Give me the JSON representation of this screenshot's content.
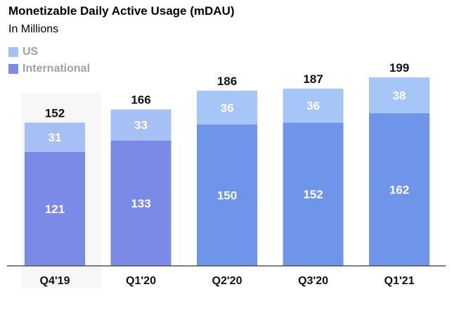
{
  "title": "Monetizable Daily Active Usage (mDAU)",
  "subtitle": "In Millions",
  "legend": [
    {
      "label": "US",
      "color": "#a6bff5"
    },
    {
      "label": "International",
      "color": "#7b8ae6"
    }
  ],
  "chart_data": {
    "type": "bar",
    "stacked": true,
    "categories": [
      "Q4'19",
      "Q1'20",
      "Q2'20",
      "Q3'20",
      "Q1'21"
    ],
    "series": [
      {
        "name": "International",
        "values": [
          121,
          133,
          150,
          152,
          162
        ],
        "colors": [
          "#7b8ae6",
          "#7b8ae6",
          "#6f95ea",
          "#6f95ea",
          "#6f95ea"
        ]
      },
      {
        "name": "US",
        "values": [
          31,
          33,
          36,
          36,
          38
        ],
        "colors": [
          "#a6bff5",
          "#a6bff5",
          "#a6c6f7",
          "#a6c6f7",
          "#a6c6f7"
        ]
      }
    ],
    "totals": [
      152,
      166,
      186,
      187,
      199
    ],
    "title": "Monetizable Daily Active Usage (mDAU)",
    "subtitle": "In Millions",
    "legend_position": "top-left"
  }
}
